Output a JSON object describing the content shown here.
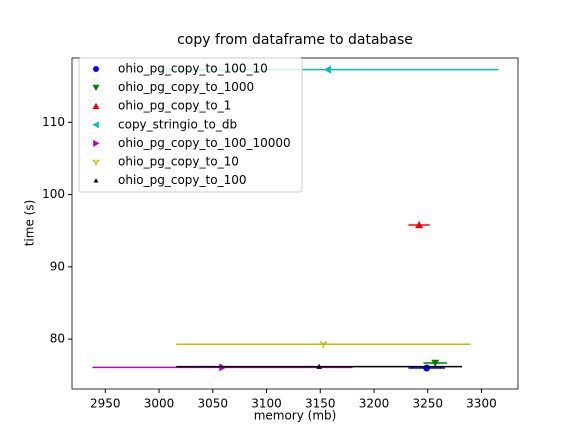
{
  "chart_data": {
    "type": "errorbar",
    "title": "copy from dataframe to database",
    "xlabel": "memory (mb)",
    "ylabel": "time (s)",
    "xlim": [
      2919,
      3334
    ],
    "ylim": [
      73.1,
      118.9
    ],
    "xticks": [
      2950,
      3000,
      3050,
      3100,
      3150,
      3200,
      3250,
      3300
    ],
    "yticks": [
      80,
      90,
      100,
      110
    ],
    "legend": "upper left",
    "series": [
      {
        "name": "ohio_pg_copy_to_100_10",
        "color": "#0000ff",
        "marker": "o",
        "x": [
          3249
        ],
        "y": [
          76.0
        ],
        "xerr": [
          17
        ]
      },
      {
        "name": "ohio_pg_copy_to_1000",
        "color": "#007f00",
        "marker": "v",
        "x": [
          3257
        ],
        "y": [
          76.7
        ],
        "xerr": [
          11
        ]
      },
      {
        "name": "ohio_pg_copy_to_1",
        "color": "#ff0000",
        "marker": "^",
        "x": [
          3242
        ],
        "y": [
          95.8
        ],
        "xerr": [
          10
        ]
      },
      {
        "name": "copy_stringio_to_db",
        "color": "#00bfbf",
        "marker": "<",
        "x": [
          3157
        ],
        "y": [
          117.3
        ],
        "xerr": [
          159
        ]
      },
      {
        "name": "ohio_pg_copy_to_100_10000",
        "color": "#bf00bf",
        "marker": ">",
        "x": [
          3059
        ],
        "y": [
          76.1
        ],
        "xerr": [
          121
        ]
      },
      {
        "name": "ohio_pg_copy_to_10",
        "color": "#bfbf00",
        "marker": "1",
        "x": [
          3153
        ],
        "y": [
          79.3
        ],
        "xerr": [
          137
        ]
      },
      {
        "name": "ohio_pg_copy_to_100",
        "color": "#000000",
        "marker": "2",
        "x": [
          3149
        ],
        "y": [
          76.2
        ],
        "xerr": [
          133
        ]
      }
    ]
  }
}
